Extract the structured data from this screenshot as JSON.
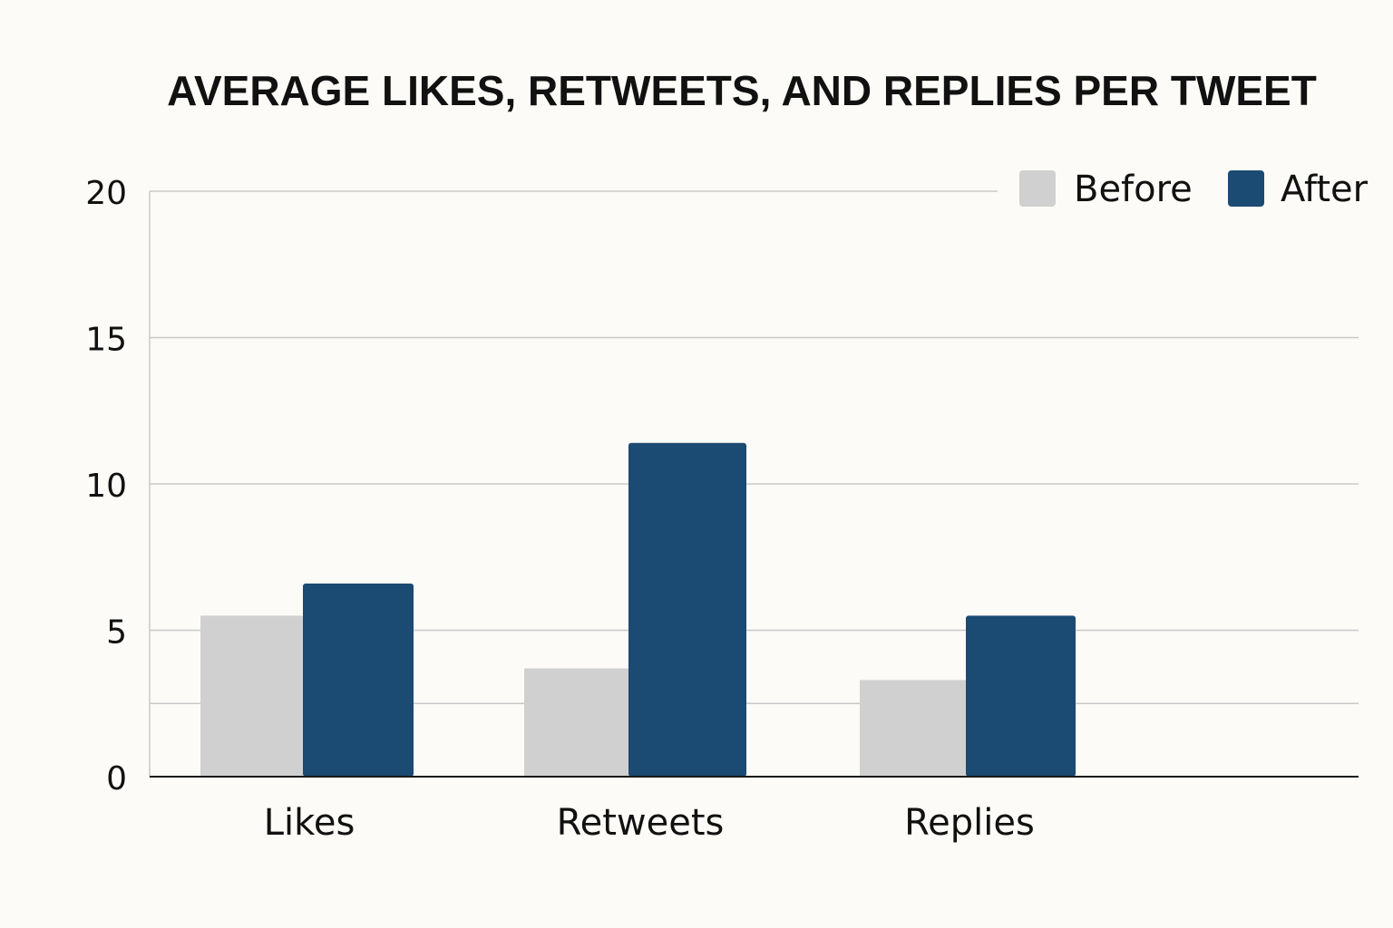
{
  "chart_data": {
    "type": "bar",
    "title": "AVERAGE LIKES, RETWEETS, AND REPLIES PER TWEET",
    "xlabel": "",
    "ylabel": "",
    "categories": [
      "Likes",
      "Retweets",
      "Replies"
    ],
    "series": [
      {
        "name": "Before",
        "color": "#d0d0d0",
        "values": [
          5.5,
          3.7,
          3.3
        ]
      },
      {
        "name": "After",
        "color": "#1b4a72",
        "values": [
          6.6,
          11.4,
          5.5
        ]
      }
    ],
    "ylim": [
      0,
      20
    ],
    "y_ticks": [
      {
        "value": 0,
        "label": "0"
      },
      {
        "value": 5,
        "label": "5"
      },
      {
        "value": 10,
        "label": "10"
      },
      {
        "value": 15,
        "label": "15"
      },
      {
        "value": 20,
        "label": "20"
      }
    ],
    "gridlines": [
      5,
      10,
      15,
      20
    ],
    "grid": true,
    "legend": "top-right",
    "colors": {
      "grid": "#c9c9c9",
      "axis": "#1a1a1a",
      "background": "#fcfbf7"
    }
  }
}
